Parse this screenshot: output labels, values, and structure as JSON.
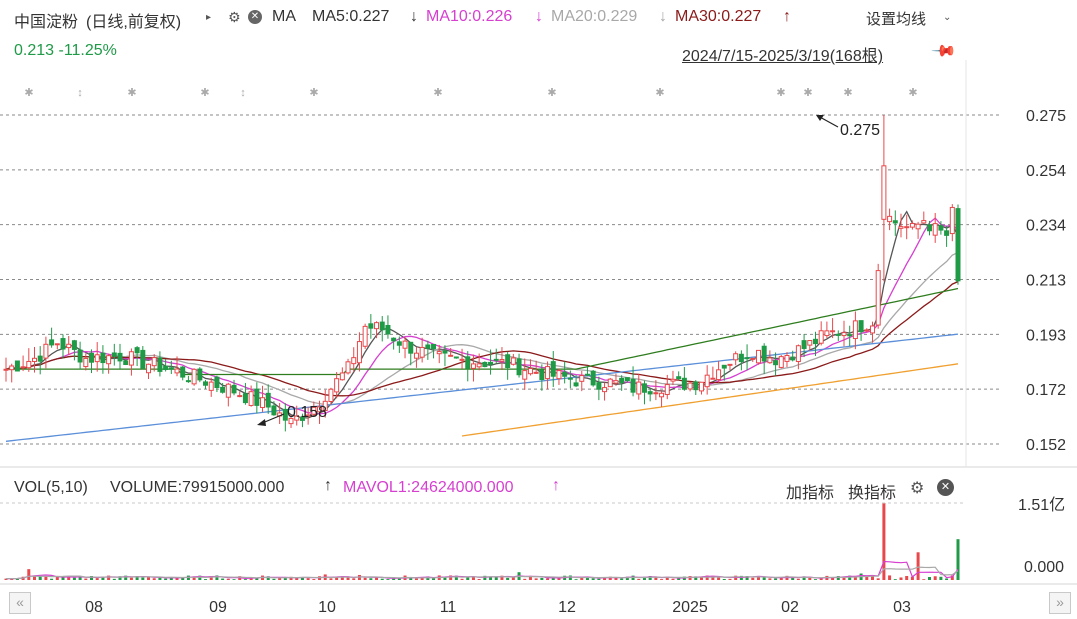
{
  "header": {
    "stock_name": "中国淀粉",
    "period": "(日线,前复权)",
    "play_icon": "play-icon",
    "ma_label": "MA",
    "ma5": "MA5:0.227",
    "ma5_arrow": "↓",
    "ma10": "MA10:0.226",
    "ma10_arrow": "↓",
    "ma20": "MA20:0.229",
    "ma20_arrow": "↓",
    "ma30": "MA30:0.227",
    "ma30_arrow": "↑",
    "settings_label": "设置均线",
    "price_change": "0.213 -11.25%",
    "date_range": "2024/7/15-2025/3/19(168根)"
  },
  "volume_header": {
    "vol_label": "VOL(5,10)",
    "volume": "VOLUME:79915000.000",
    "volume_arrow": "↑",
    "mavol": "MAVOL1:24624000.000",
    "mavol_arrow": "↑",
    "add_indicator": "加指标",
    "switch_indicator": "换指标"
  },
  "colors": {
    "up": "#e8484b",
    "down": "#1f9a47",
    "ma5": "#555555",
    "ma10": "#d63fd0",
    "ma20": "#a8a8a8",
    "ma30": "#8b1a1a",
    "ma60": "#2e7d1e",
    "ma120": "#5b8fd9",
    "ma250": "#f0a030",
    "mavol1": "#d63fd0",
    "mavol2": "#a8a8a8"
  },
  "chart_data": {
    "type": "candlestick",
    "price_axis_ticks": [
      "0.275",
      "0.254",
      "0.234",
      "0.213",
      "0.193",
      "0.172",
      "0.152"
    ],
    "ylim": [
      0.145,
      0.29
    ],
    "x_tick_labels": [
      "08",
      "09",
      "10",
      "11",
      "12",
      "2025",
      "02",
      "03"
    ],
    "annotations": [
      {
        "label": "0.275",
        "note": "period high"
      },
      {
        "label": "0.158",
        "note": "period low"
      }
    ],
    "volume_axis_ticks": [
      "1.51亿",
      "0.000"
    ],
    "volume_ylim": [
      0,
      151000000
    ],
    "series": [
      {
        "name": "MA5",
        "last": 0.227
      },
      {
        "name": "MA10",
        "last": 0.226
      },
      {
        "name": "MA20",
        "last": 0.229
      },
      {
        "name": "MA30",
        "last": 0.227
      }
    ],
    "last_close": 0.213,
    "last_change_pct": -11.25,
    "bars_count": 168,
    "last_volume": 79915000,
    "last_mavol1": 24624000
  }
}
